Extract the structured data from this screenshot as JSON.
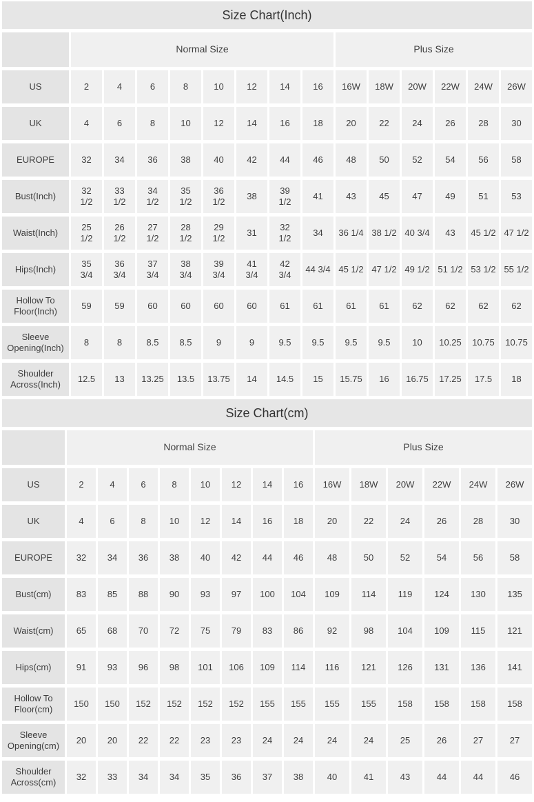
{
  "styles": {
    "title_bg": "#e6e6e6",
    "label_cell_bg": "#e4e4e4",
    "data_cell_bg": "#f0f0f0",
    "text_color": "#3f3f3f"
  },
  "chart_data": [
    {
      "type": "table",
      "title": "Size Chart(Inch)",
      "column_groups": [
        {
          "label": "Normal Size",
          "span": 8
        },
        {
          "label": "Plus Size",
          "span": 6
        }
      ],
      "rows": [
        {
          "label": "US",
          "values": [
            "2",
            "4",
            "6",
            "8",
            "10",
            "12",
            "14",
            "16",
            "16W",
            "18W",
            "20W",
            "22W",
            "24W",
            "26W"
          ]
        },
        {
          "label": "UK",
          "values": [
            "4",
            "6",
            "8",
            "10",
            "12",
            "14",
            "16",
            "18",
            "20",
            "22",
            "24",
            "26",
            "28",
            "30"
          ]
        },
        {
          "label": "EUROPE",
          "values": [
            "32",
            "34",
            "36",
            "38",
            "40",
            "42",
            "44",
            "46",
            "48",
            "50",
            "52",
            "54",
            "56",
            "58"
          ]
        },
        {
          "label": "Bust(Inch)",
          "values": [
            "32\n1/2",
            "33\n1/2",
            "34\n1/2",
            "35\n1/2",
            "36\n1/2",
            "38",
            "39\n1/2",
            "41",
            "43",
            "45",
            "47",
            "49",
            "51",
            "53"
          ]
        },
        {
          "label": "Waist(Inch)",
          "values": [
            "25\n1/2",
            "26\n1/2",
            "27\n1/2",
            "28\n1/2",
            "29\n1/2",
            "31",
            "32\n1/2",
            "34",
            "36 1/4",
            "38 1/2",
            "40 3/4",
            "43",
            "45 1/2",
            "47 1/2"
          ]
        },
        {
          "label": "Hips(Inch)",
          "values": [
            "35\n3/4",
            "36\n3/4",
            "37\n3/4",
            "38\n3/4",
            "39\n3/4",
            "41\n3/4",
            "42\n3/4",
            "44 3/4",
            "45 1/2",
            "47 1/2",
            "49 1/2",
            "51 1/2",
            "53 1/2",
            "55 1/2"
          ]
        },
        {
          "label": "Hollow To\nFloor(Inch)",
          "values": [
            "59",
            "59",
            "60",
            "60",
            "60",
            "60",
            "61",
            "61",
            "61",
            "61",
            "62",
            "62",
            "62",
            "62"
          ]
        },
        {
          "label": "Sleeve\nOpening(Inch)",
          "values": [
            "8",
            "8",
            "8.5",
            "8.5",
            "9",
            "9",
            "9.5",
            "9.5",
            "9.5",
            "9.5",
            "10",
            "10.25",
            "10.75",
            "10.75"
          ]
        },
        {
          "label": "Shoulder\nAcross(Inch)",
          "values": [
            "12.5",
            "13",
            "13.25",
            "13.5",
            "13.75",
            "14",
            "14.5",
            "15",
            "15.75",
            "16",
            "16.75",
            "17.25",
            "17.5",
            "18"
          ]
        }
      ]
    },
    {
      "type": "table",
      "title": "Size Chart(cm)",
      "column_groups": [
        {
          "label": "Normal Size",
          "span": 8
        },
        {
          "label": "Plus Size",
          "span": 6
        }
      ],
      "rows": [
        {
          "label": "US",
          "values": [
            "2",
            "4",
            "6",
            "8",
            "10",
            "12",
            "14",
            "16",
            "16W",
            "18W",
            "20W",
            "22W",
            "24W",
            "26W"
          ]
        },
        {
          "label": "UK",
          "values": [
            "4",
            "6",
            "8",
            "10",
            "12",
            "14",
            "16",
            "18",
            "20",
            "22",
            "24",
            "26",
            "28",
            "30"
          ]
        },
        {
          "label": "EUROPE",
          "values": [
            "32",
            "34",
            "36",
            "38",
            "40",
            "42",
            "44",
            "46",
            "48",
            "50",
            "52",
            "54",
            "56",
            "58"
          ]
        },
        {
          "label": "Bust(cm)",
          "values": [
            "83",
            "85",
            "88",
            "90",
            "93",
            "97",
            "100",
            "104",
            "109",
            "114",
            "119",
            "124",
            "130",
            "135"
          ]
        },
        {
          "label": "Waist(cm)",
          "values": [
            "65",
            "68",
            "70",
            "72",
            "75",
            "79",
            "83",
            "86",
            "92",
            "98",
            "104",
            "109",
            "115",
            "121"
          ]
        },
        {
          "label": "Hips(cm)",
          "values": [
            "91",
            "93",
            "96",
            "98",
            "101",
            "106",
            "109",
            "114",
            "116",
            "121",
            "126",
            "131",
            "136",
            "141"
          ]
        },
        {
          "label": "Hollow To\nFloor(cm)",
          "values": [
            "150",
            "150",
            "152",
            "152",
            "152",
            "152",
            "155",
            "155",
            "155",
            "155",
            "158",
            "158",
            "158",
            "158"
          ]
        },
        {
          "label": "Sleeve\nOpening(cm)",
          "values": [
            "20",
            "20",
            "22",
            "22",
            "23",
            "23",
            "24",
            "24",
            "24",
            "24",
            "25",
            "26",
            "27",
            "27"
          ]
        },
        {
          "label": "Shoulder\nAcross(cm)",
          "values": [
            "32",
            "33",
            "34",
            "34",
            "35",
            "36",
            "37",
            "38",
            "40",
            "41",
            "43",
            "44",
            "44",
            "46"
          ]
        }
      ]
    }
  ]
}
